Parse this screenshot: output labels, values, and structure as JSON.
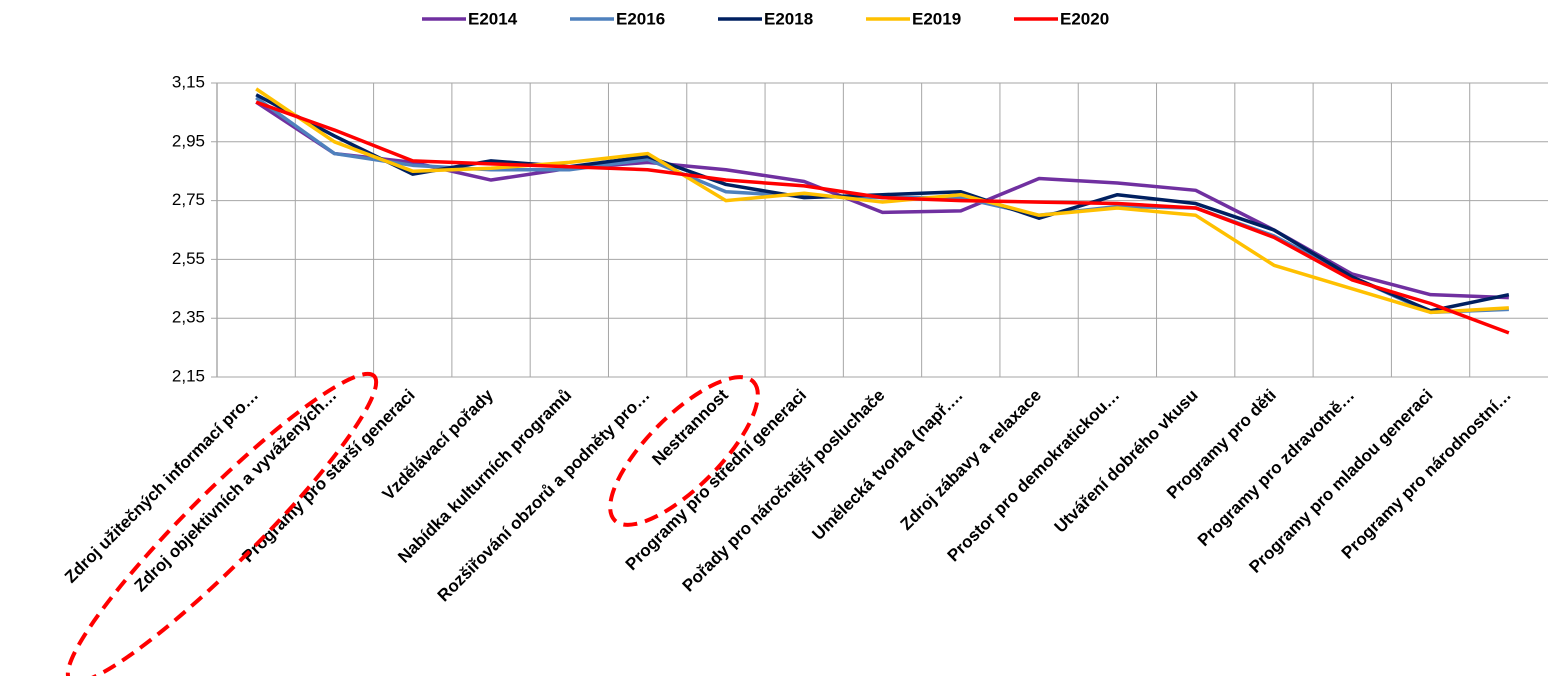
{
  "chart_data": {
    "type": "line",
    "categories": [
      "Zdroj užitečných informací pro…",
      "Zdroj objektivních a vyvážených…",
      "Programy pro starší generaci",
      "Vzdělávací pořady",
      "Nabídka kulturních programů",
      "Rozšiřování obzorů a podněty pro…",
      "Nestrannost",
      "Programy pro střední generaci",
      "Pořady pro náročnější posluchače",
      "Umělecká tvorba (např.…",
      "Zdroj zábavy a relaxace",
      "Prostor pro demokratickou…",
      "Utváření dobrého vkusu",
      "Programy pro děti",
      "Programy pro zdravotně…",
      "Programy pro mladou generaci",
      "Programy pro národnostní…"
    ],
    "series": [
      {
        "name": "E2014",
        "color": "#7030a0",
        "values": [
          3.085,
          2.91,
          2.88,
          2.82,
          2.86,
          2.88,
          2.855,
          2.815,
          2.71,
          2.715,
          2.825,
          2.81,
          2.785,
          2.65,
          2.5,
          2.43,
          2.42
        ]
      },
      {
        "name": "E2016",
        "color": "#4f81bd",
        "values": [
          3.1,
          2.91,
          2.87,
          2.855,
          2.855,
          2.89,
          2.78,
          2.765,
          2.76,
          2.76,
          2.7,
          2.73,
          2.725,
          2.63,
          2.49,
          2.37,
          2.38
        ]
      },
      {
        "name": "E2018",
        "color": "#002060",
        "values": [
          3.11,
          2.97,
          2.84,
          2.885,
          2.865,
          2.9,
          2.805,
          2.76,
          2.77,
          2.78,
          2.69,
          2.77,
          2.74,
          2.65,
          2.49,
          2.375,
          2.43
        ]
      },
      {
        "name": "E2019",
        "color": "#ffc000",
        "values": [
          3.13,
          2.95,
          2.85,
          2.86,
          2.88,
          2.91,
          2.75,
          2.775,
          2.745,
          2.77,
          2.7,
          2.725,
          2.7,
          2.53,
          2.45,
          2.37,
          2.385
        ]
      },
      {
        "name": "E2020",
        "color": "#ff0000",
        "values": [
          3.085,
          2.99,
          2.885,
          2.875,
          2.865,
          2.855,
          2.82,
          2.8,
          2.76,
          2.75,
          2.745,
          2.74,
          2.725,
          2.625,
          2.48,
          2.4,
          2.3
        ]
      }
    ],
    "ylim": [
      2.15,
      3.15
    ],
    "yticks": [
      {
        "value": 2.15,
        "label": "2,15"
      },
      {
        "value": 2.35,
        "label": "2,35"
      },
      {
        "value": 2.55,
        "label": "2,55"
      },
      {
        "value": 2.75,
        "label": "2,75"
      },
      {
        "value": 2.95,
        "label": "2,95"
      },
      {
        "value": 3.15,
        "label": "3,15"
      }
    ],
    "grid": true,
    "legend": "top"
  }
}
